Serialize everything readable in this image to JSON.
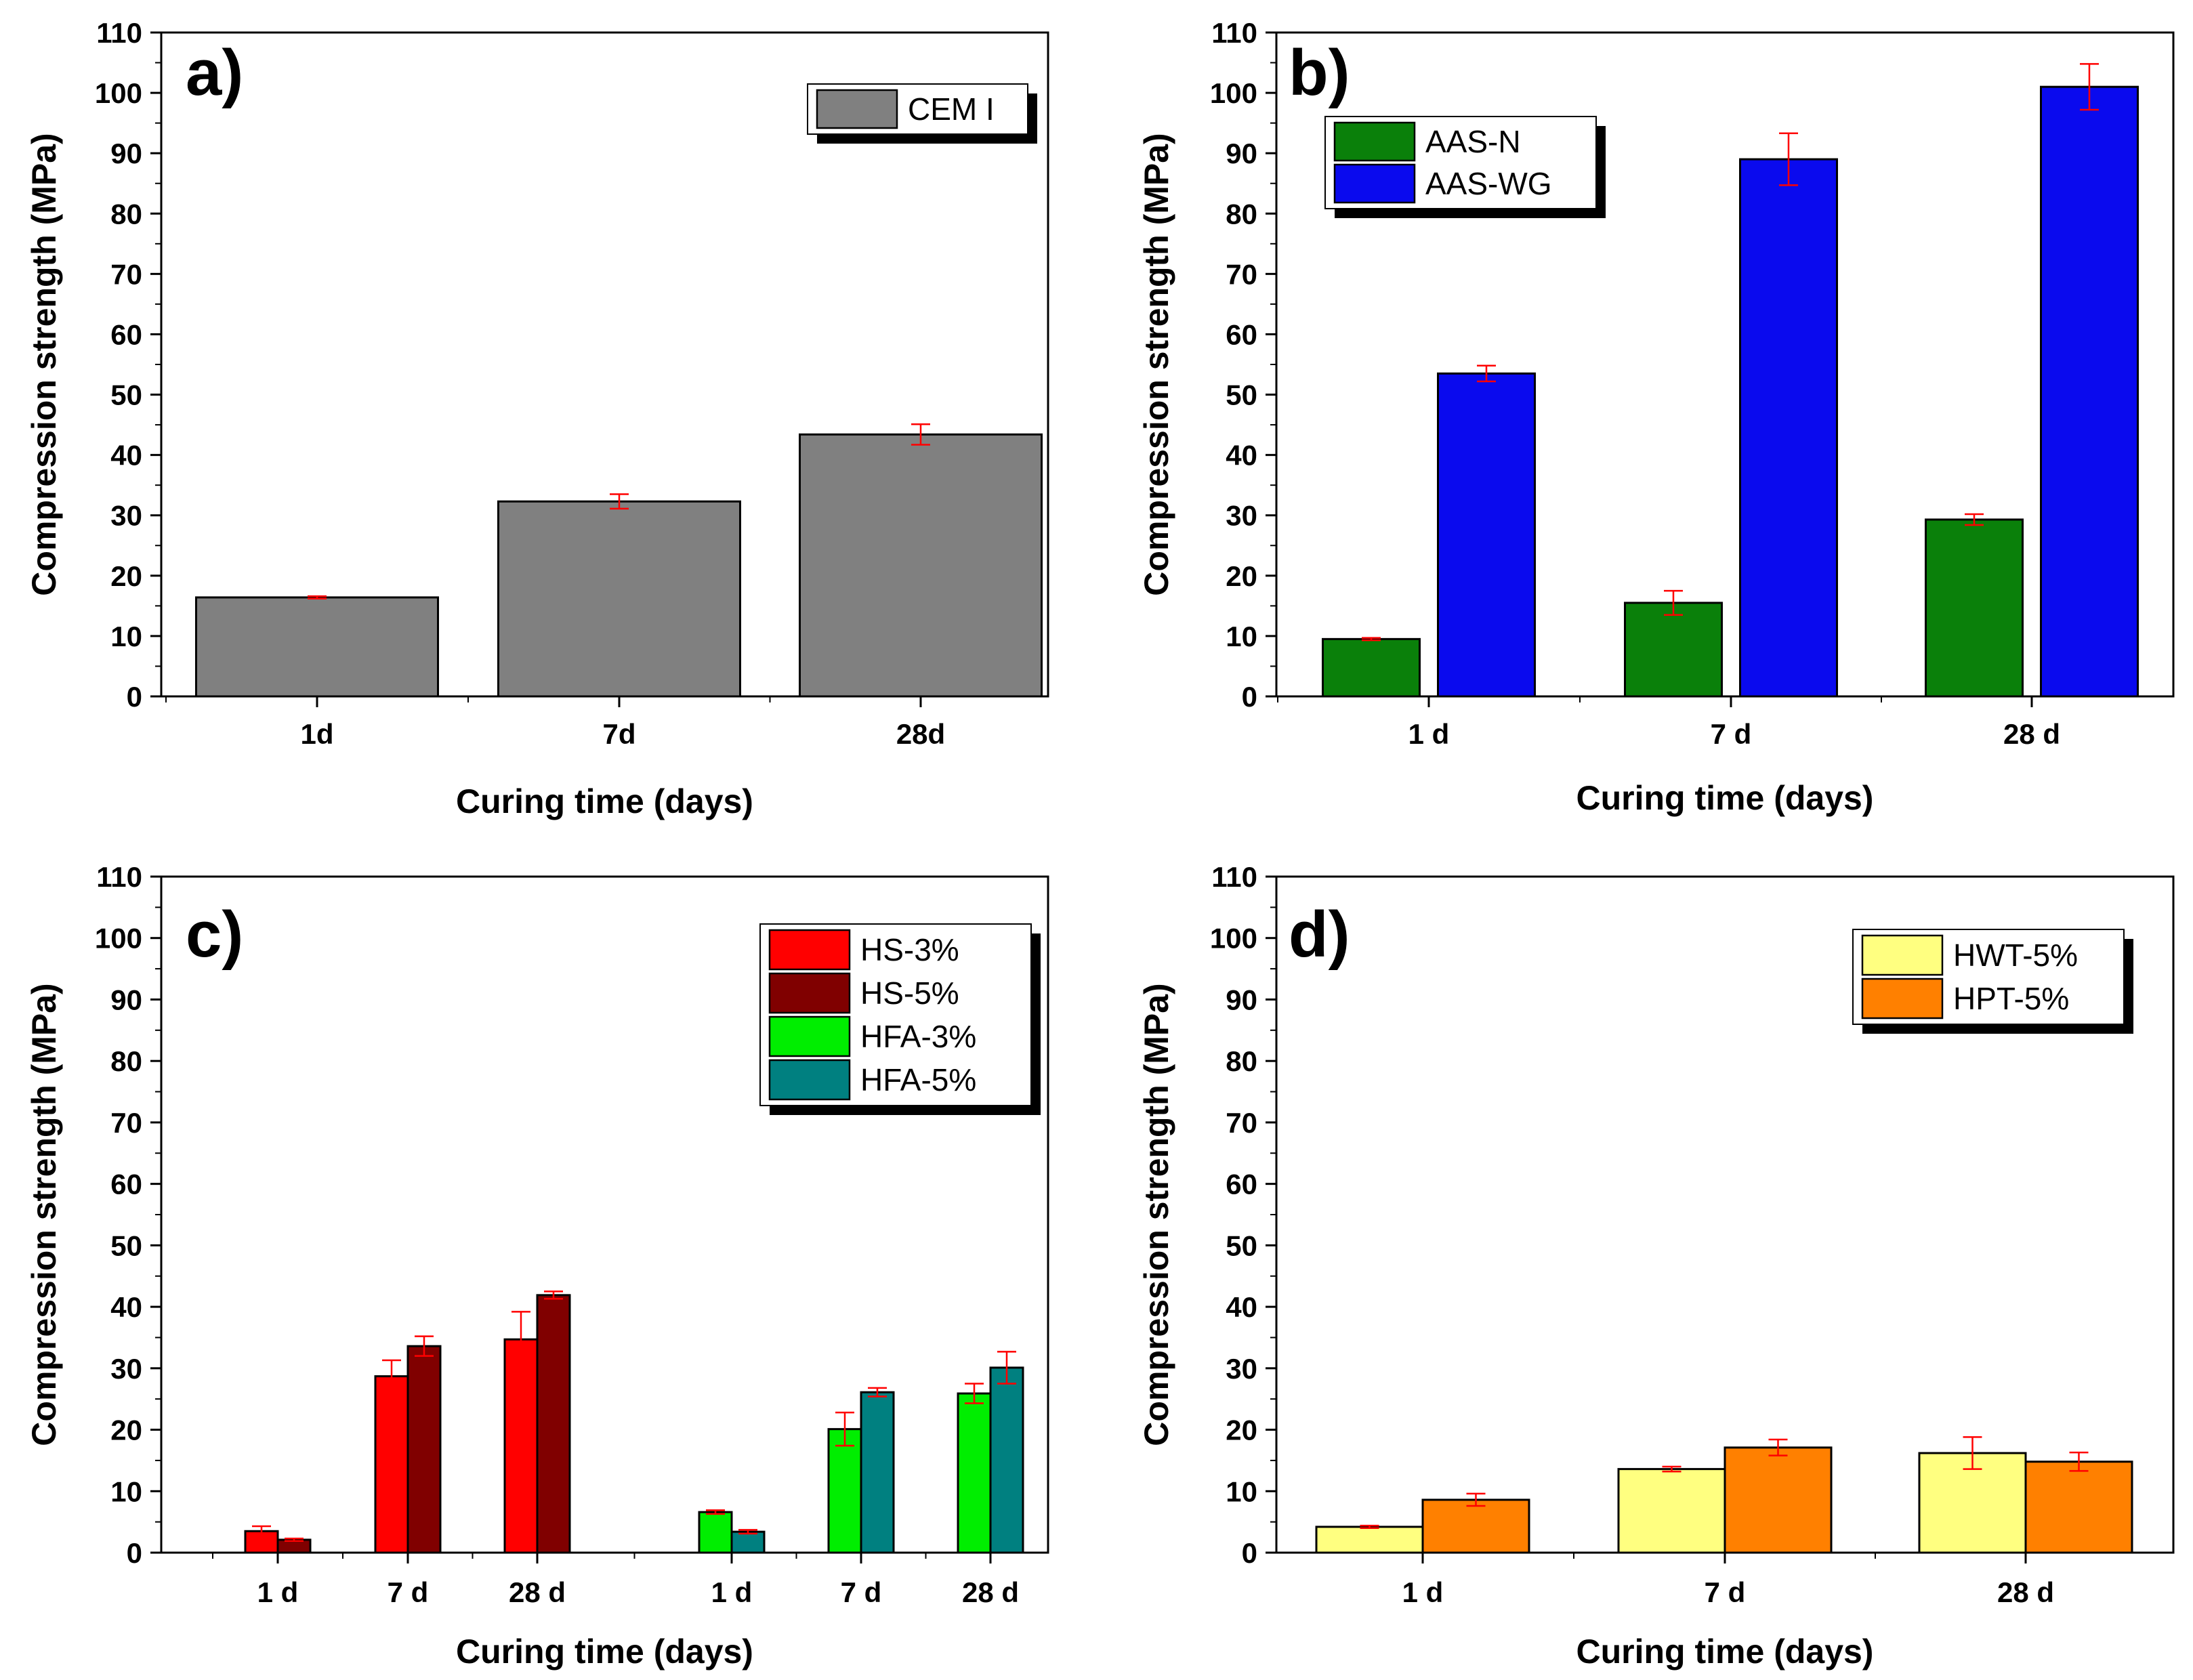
{
  "chart_data": [
    {
      "type": "bar",
      "label": "a)",
      "title": "",
      "xlabel": "Curing time (days)",
      "ylabel": "Compression strength (MPa)",
      "ylim": [
        0,
        110
      ],
      "yticks": [
        "0",
        "10",
        "20",
        "30",
        "40",
        "50",
        "60",
        "70",
        "80",
        "90",
        "100",
        "110"
      ],
      "categories": [
        "1d",
        "7d",
        "28d"
      ],
      "legend_position": "top-right",
      "series": [
        {
          "name": "CEM I",
          "color": "#808080",
          "values": [
            16.4,
            32.3,
            43.4
          ],
          "errors": [
            0.2,
            1.2,
            1.7
          ]
        }
      ]
    },
    {
      "type": "bar",
      "label": "b)",
      "title": "",
      "xlabel": "Curing time (days)",
      "ylabel": "Compression strength (MPa)",
      "ylim": [
        0,
        110
      ],
      "yticks": [
        "0",
        "10",
        "20",
        "30",
        "40",
        "50",
        "60",
        "70",
        "80",
        "90",
        "100",
        "110"
      ],
      "categories": [
        "1 d",
        "7 d",
        "28 d"
      ],
      "legend_position": "top-left",
      "series": [
        {
          "name": "AAS-N",
          "color": "#0a800a",
          "values": [
            9.5,
            15.5,
            29.3
          ],
          "errors": [
            0.2,
            2.0,
            0.9
          ]
        },
        {
          "name": "AAS-WG",
          "color": "#0a0aee",
          "values": [
            53.5,
            89.0,
            101.0
          ],
          "errors": [
            1.3,
            4.3,
            3.8
          ]
        }
      ]
    },
    {
      "type": "bar",
      "label": "c)",
      "title": "",
      "xlabel": "Curing time (days)",
      "ylabel": "Compression strength (MPa)",
      "ylim": [
        0,
        110
      ],
      "yticks": [
        "0",
        "10",
        "20",
        "30",
        "40",
        "50",
        "60",
        "70",
        "80",
        "90",
        "100",
        "110"
      ],
      "categories": [
        "1 d",
        "7 d",
        "28 d",
        "1 d",
        "7 d",
        "28 d"
      ],
      "legend_position": "top-right",
      "series": [
        {
          "name": "HS-3%",
          "color": "#ff0000",
          "values": [
            3.5,
            28.7,
            34.7,
            null,
            null,
            null
          ],
          "errors": [
            0.8,
            2.6,
            4.5,
            0,
            0,
            0
          ]
        },
        {
          "name": "HS-5%",
          "color": "#800000",
          "values": [
            2.1,
            33.6,
            41.9,
            null,
            null,
            null
          ],
          "errors": [
            0.2,
            1.6,
            0.6,
            0,
            0,
            0
          ]
        },
        {
          "name": "HFA-3%",
          "color": "#00ee00",
          "values": [
            null,
            null,
            null,
            6.6,
            20.1,
            25.9
          ],
          "errors": [
            0,
            0,
            0,
            0.3,
            2.7,
            1.6
          ]
        },
        {
          "name": "HFA-5%",
          "color": "#008080",
          "values": [
            null,
            null,
            null,
            3.4,
            26.1,
            30.1
          ],
          "errors": [
            0,
            0,
            0,
            0.3,
            0.7,
            2.6
          ]
        }
      ]
    },
    {
      "type": "bar",
      "label": "d)",
      "title": "",
      "xlabel": "Curing time (days)",
      "ylabel": "Compression strength (MPa)",
      "ylim": [
        0,
        110
      ],
      "yticks": [
        "0",
        "10",
        "20",
        "30",
        "40",
        "50",
        "60",
        "70",
        "80",
        "90",
        "100",
        "110"
      ],
      "categories": [
        "1 d",
        "7 d",
        "28 d"
      ],
      "legend_position": "top-right",
      "series": [
        {
          "name": "HWT-5%",
          "color": "#ffff80",
          "values": [
            4.2,
            13.6,
            16.2
          ],
          "errors": [
            0.2,
            0.4,
            2.6
          ]
        },
        {
          "name": "HPT-5%",
          "color": "#ff8000",
          "values": [
            8.6,
            17.1,
            14.8
          ],
          "errors": [
            1.0,
            1.3,
            1.5
          ]
        }
      ]
    }
  ]
}
